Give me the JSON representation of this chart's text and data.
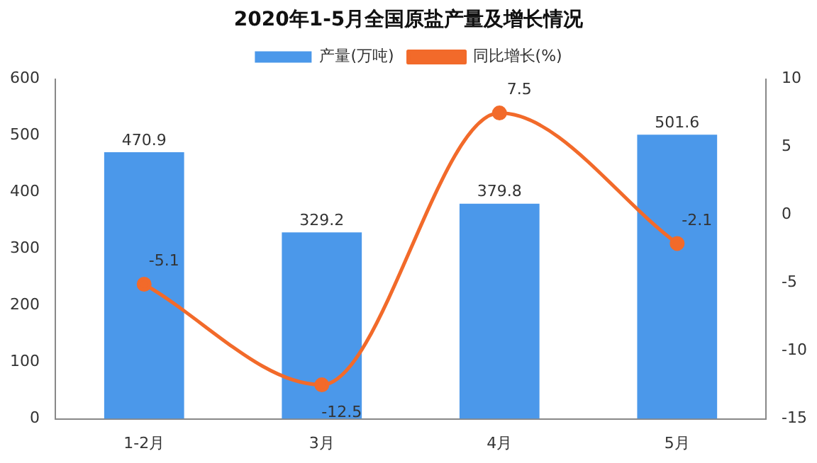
{
  "chart_data": {
    "type": "bar",
    "title": "2020年1-5月全国原盐产量及增长情况",
    "categories": [
      "1-2月",
      "3月",
      "4月",
      "5月"
    ],
    "series": [
      {
        "name": "产量(万吨)",
        "color": "#4b98ea",
        "values": [
          470.9,
          329.2,
          379.8,
          501.6
        ]
      },
      {
        "name": "同比增长(%)",
        "type": "line",
        "axis": "y2",
        "color": "#f26a2a",
        "values": [
          -5.1,
          -12.5,
          7.5,
          -2.1
        ]
      }
    ],
    "ylim": [
      0,
      600
    ],
    "yticks": [
      0,
      100,
      200,
      300,
      400,
      500,
      600
    ],
    "y2lim": [
      -15,
      10
    ],
    "y2ticks": [
      -15,
      -10,
      -5,
      0,
      5,
      10
    ],
    "legend": "top",
    "grid": false,
    "marker": "circle",
    "data_labels": true
  }
}
